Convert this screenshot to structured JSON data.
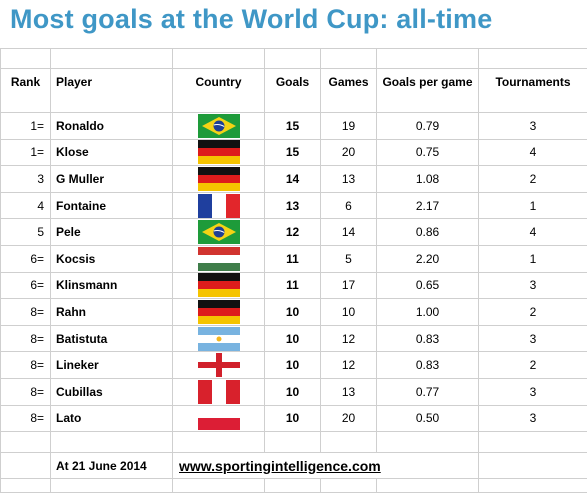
{
  "title": "Most goals at the World Cup: all-time",
  "headers": {
    "rank": "Rank",
    "player": "Player",
    "country": "Country",
    "goals": "Goals",
    "games": "Games",
    "gpg": "Goals per game",
    "tournaments": "Tournaments"
  },
  "rows": [
    {
      "rank": "1=",
      "player": "Ronaldo",
      "flag": "brazil-flag",
      "goals": "15",
      "games": "19",
      "gpg": "0.79",
      "tournaments": "3"
    },
    {
      "rank": "1=",
      "player": "Klose",
      "flag": "germany-flag",
      "goals": "15",
      "games": "20",
      "gpg": "0.75",
      "tournaments": "4"
    },
    {
      "rank": "3",
      "player": "G Muller",
      "flag": "germany-flag",
      "goals": "14",
      "games": "13",
      "gpg": "1.08",
      "tournaments": "2"
    },
    {
      "rank": "4",
      "player": "Fontaine",
      "flag": "france-flag",
      "goals": "13",
      "games": "6",
      "gpg": "2.17",
      "tournaments": "1"
    },
    {
      "rank": "5",
      "player": "Pele",
      "flag": "brazil-flag",
      "goals": "12",
      "games": "14",
      "gpg": "0.86",
      "tournaments": "4"
    },
    {
      "rank": "6=",
      "player": "Kocsis",
      "flag": "hungary-flag",
      "goals": "11",
      "games": "5",
      "gpg": "2.20",
      "tournaments": "1"
    },
    {
      "rank": "6=",
      "player": "Klinsmann",
      "flag": "germany-flag",
      "goals": "11",
      "games": "17",
      "gpg": "0.65",
      "tournaments": "3"
    },
    {
      "rank": "8=",
      "player": "Rahn",
      "flag": "germany-flag",
      "goals": "10",
      "games": "10",
      "gpg": "1.00",
      "tournaments": "2"
    },
    {
      "rank": "8=",
      "player": "Batistuta",
      "flag": "argentina-flag",
      "goals": "10",
      "games": "12",
      "gpg": "0.83",
      "tournaments": "3"
    },
    {
      "rank": "8=",
      "player": "Lineker",
      "flag": "england-flag",
      "goals": "10",
      "games": "12",
      "gpg": "0.83",
      "tournaments": "2"
    },
    {
      "rank": "8=",
      "player": "Cubillas",
      "flag": "peru-flag",
      "goals": "10",
      "games": "13",
      "gpg": "0.77",
      "tournaments": "3"
    },
    {
      "rank": "8=",
      "player": "Lato",
      "flag": "poland-flag",
      "goals": "10",
      "games": "20",
      "gpg": "0.50",
      "tournaments": "3"
    }
  ],
  "footer": {
    "date": "At 21 June 2014",
    "website": "www.sportingintelligence.com"
  }
}
